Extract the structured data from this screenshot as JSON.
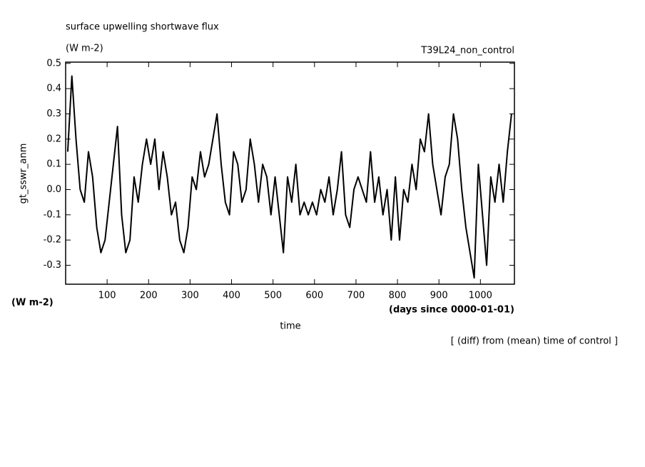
{
  "chart_data": {
    "type": "line",
    "title": "surface upwelling shortwave flux",
    "units_top": "(W m-2)",
    "run_label": "T39L24_non_control",
    "ylabel": "gt_sswr_anm",
    "units_left": "(W m-2)",
    "xlabel": "time",
    "xunits": "(days since 0000-01-01)",
    "note": "[ (diff) from (mean) time of control ]",
    "color": "#000000",
    "xlim": [
      0,
      1082
    ],
    "ylim": [
      -0.375,
      0.505
    ],
    "xticks": [
      100,
      200,
      300,
      400,
      500,
      600,
      700,
      800,
      900,
      1000
    ],
    "yticks": [
      -0.3,
      -0.2,
      -0.1,
      {
        "value": 0,
        "label": "0.0"
      },
      0.1,
      0.2,
      0.3,
      0.4,
      0.5
    ],
    "x": [
      5,
      15,
      25,
      35,
      45,
      55,
      65,
      75,
      85,
      95,
      105,
      115,
      125,
      135,
      145,
      155,
      165,
      175,
      185,
      195,
      205,
      215,
      225,
      235,
      245,
      255,
      265,
      275,
      285,
      295,
      305,
      315,
      325,
      335,
      345,
      355,
      365,
      375,
      385,
      395,
      405,
      415,
      425,
      435,
      445,
      455,
      465,
      475,
      485,
      495,
      505,
      515,
      525,
      535,
      545,
      555,
      565,
      575,
      585,
      595,
      605,
      615,
      625,
      635,
      645,
      655,
      665,
      675,
      685,
      695,
      705,
      715,
      725,
      735,
      745,
      755,
      765,
      775,
      785,
      795,
      805,
      815,
      825,
      835,
      845,
      855,
      865,
      875,
      885,
      895,
      905,
      915,
      925,
      935,
      945,
      955,
      965,
      975,
      985,
      995,
      1005,
      1015,
      1025,
      1035,
      1045,
      1055,
      1065,
      1075
    ],
    "values": [
      0.15,
      0.45,
      0.2,
      0.0,
      -0.05,
      0.15,
      0.05,
      -0.15,
      -0.25,
      -0.2,
      -0.05,
      0.1,
      0.25,
      -0.1,
      -0.25,
      -0.2,
      0.05,
      -0.05,
      0.1,
      0.2,
      0.1,
      0.2,
      0.0,
      0.15,
      0.05,
      -0.1,
      -0.05,
      -0.2,
      -0.25,
      -0.15,
      0.05,
      0.0,
      0.15,
      0.05,
      0.1,
      0.2,
      0.3,
      0.1,
      -0.05,
      -0.1,
      0.15,
      0.1,
      -0.05,
      0.0,
      0.2,
      0.1,
      -0.05,
      0.1,
      0.05,
      -0.1,
      0.05,
      -0.1,
      -0.25,
      0.05,
      -0.05,
      0.1,
      -0.1,
      -0.05,
      -0.1,
      -0.05,
      -0.1,
      0.0,
      -0.05,
      0.05,
      -0.1,
      0.0,
      0.15,
      -0.1,
      -0.15,
      0.0,
      0.05,
      0.0,
      -0.05,
      0.15,
      -0.05,
      0.05,
      -0.1,
      0.0,
      -0.2,
      0.05,
      -0.2,
      0.0,
      -0.05,
      0.1,
      0.0,
      0.2,
      0.15,
      0.3,
      0.1,
      0.0,
      -0.1,
      0.05,
      0.1,
      0.3,
      0.2,
      0.0,
      -0.15,
      -0.25,
      -0.35,
      0.1,
      -0.1,
      -0.3,
      0.05,
      -0.05,
      0.1,
      -0.05,
      0.15,
      0.3
    ]
  }
}
